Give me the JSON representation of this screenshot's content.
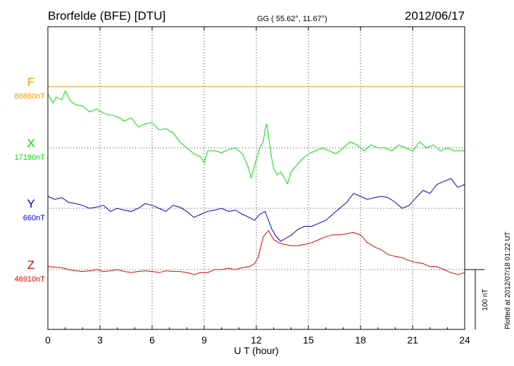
{
  "chart_data": {
    "type": "line",
    "title": "Brorfelde (BFE)  [DTU]",
    "subtitle": "GG ( 55.62°,  11.67°)",
    "date": "2012/06/17",
    "xlabel": "U T (hour)",
    "xlim": [
      0,
      24
    ],
    "xticks": [
      "0",
      "3",
      "6",
      "9",
      "12",
      "15",
      "18",
      "21",
      "24"
    ],
    "grid": true,
    "scale_bar": {
      "label": "100 nT",
      "value_nT": 100
    },
    "footer": "Plotted at 2012/07/18 01:22 UT",
    "colors": {
      "F": "#e8a000",
      "X": "#00e000",
      "Y": "#0000cc",
      "Z": "#dd0000"
    },
    "series": [
      {
        "name": "F",
        "baseline": "88880nT",
        "x": [
          0,
          24
        ],
        "y": [
          0,
          0
        ]
      },
      {
        "name": "X",
        "baseline": "17180nT",
        "x": [
          0,
          0.3,
          0.5,
          0.8,
          1.0,
          1.3,
          1.6,
          2.0,
          2.4,
          2.8,
          3.2,
          3.6,
          4.0,
          4.4,
          4.8,
          5.2,
          5.6,
          6.0,
          6.4,
          6.8,
          7.2,
          7.6,
          8.0,
          8.4,
          8.8,
          9.0,
          9.2,
          9.6,
          10.0,
          10.4,
          10.8,
          11.2,
          11.5,
          11.7,
          11.8,
          12.0,
          12.2,
          12.4,
          12.5,
          12.6,
          12.7,
          12.8,
          12.9,
          13.0,
          13.2,
          13.4,
          13.6,
          13.8,
          14.0,
          14.3,
          14.6,
          15.0,
          15.4,
          15.8,
          16.2,
          16.6,
          17.0,
          17.4,
          17.8,
          18.2,
          18.6,
          19.0,
          19.4,
          19.8,
          20.2,
          20.6,
          21.0,
          21.4,
          21.8,
          22.2,
          22.6,
          23.0,
          23.4,
          23.8,
          24.0
        ],
        "y": [
          90,
          75,
          85,
          80,
          95,
          78,
          72,
          70,
          60,
          65,
          58,
          55,
          52,
          45,
          50,
          35,
          40,
          42,
          30,
          32,
          25,
          10,
          0,
          -10,
          -15,
          -25,
          -5,
          -5,
          -8,
          -3,
          0,
          -10,
          -30,
          -50,
          -40,
          -20,
          0,
          10,
          30,
          40,
          20,
          0,
          -20,
          -35,
          -45,
          -40,
          -50,
          -60,
          -40,
          -30,
          -20,
          -10,
          -5,
          0,
          -5,
          -10,
          0,
          10,
          5,
          -5,
          5,
          0,
          0,
          -5,
          5,
          0,
          -5,
          10,
          0,
          5,
          -5,
          0,
          -5,
          -5,
          -5
        ]
      },
      {
        "name": "Y",
        "baseline": "660nT",
        "x": [
          0,
          0.4,
          0.8,
          1.2,
          1.6,
          2.0,
          2.4,
          2.8,
          3.2,
          3.6,
          4.0,
          4.4,
          4.8,
          5.2,
          5.6,
          6.0,
          6.4,
          6.8,
          7.2,
          7.6,
          8.0,
          8.4,
          8.8,
          9.2,
          9.6,
          10.0,
          10.4,
          10.8,
          11.2,
          11.6,
          11.9,
          12.2,
          12.5,
          12.7,
          12.9,
          13.1,
          13.4,
          13.7,
          14.0,
          14.4,
          14.8,
          15.2,
          15.6,
          16.0,
          16.4,
          16.8,
          17.2,
          17.6,
          18.0,
          18.4,
          18.8,
          19.2,
          19.6,
          20.0,
          20.4,
          20.8,
          21.2,
          21.6,
          22.0,
          22.4,
          22.8,
          23.2,
          23.6,
          24.0
        ],
        "y": [
          20,
          15,
          18,
          10,
          8,
          5,
          0,
          2,
          5,
          -5,
          0,
          -3,
          -5,
          0,
          8,
          5,
          0,
          -5,
          5,
          2,
          -5,
          -15,
          -10,
          -5,
          -3,
          0,
          -5,
          -3,
          -10,
          -15,
          -20,
          -10,
          -5,
          -20,
          -35,
          -45,
          -55,
          -50,
          -45,
          -35,
          -30,
          -30,
          -25,
          -20,
          -10,
          0,
          10,
          25,
          20,
          15,
          18,
          20,
          18,
          10,
          0,
          5,
          18,
          30,
          25,
          40,
          45,
          50,
          35,
          40
        ]
      },
      {
        "name": "Z",
        "baseline": "46910nT",
        "x": [
          0,
          0.4,
          0.8,
          1.2,
          1.6,
          2.0,
          2.4,
          2.8,
          3.2,
          3.6,
          4.0,
          4.4,
          4.8,
          5.2,
          5.6,
          6.0,
          6.4,
          6.8,
          7.2,
          7.6,
          8.0,
          8.4,
          8.8,
          9.2,
          9.6,
          10.0,
          10.4,
          10.8,
          11.2,
          11.6,
          11.9,
          12.1,
          12.4,
          12.7,
          13.0,
          13.3,
          13.6,
          14.0,
          14.4,
          14.8,
          15.2,
          15.6,
          16.0,
          16.4,
          16.8,
          17.2,
          17.6,
          18.0,
          18.4,
          18.8,
          19.2,
          19.6,
          20.0,
          20.4,
          20.8,
          21.2,
          21.6,
          22.0,
          22.4,
          22.8,
          23.2,
          23.6,
          24.0
        ],
        "y": [
          5,
          4,
          3,
          0,
          -2,
          -3,
          -2,
          0,
          -3,
          -2,
          0,
          -3,
          -5,
          -3,
          -2,
          -3,
          -5,
          -2,
          -3,
          -3,
          -5,
          -8,
          -5,
          -5,
          0,
          0,
          2,
          0,
          3,
          5,
          10,
          20,
          55,
          65,
          50,
          45,
          42,
          40,
          40,
          42,
          45,
          50,
          55,
          58,
          58,
          60,
          62,
          58,
          45,
          38,
          33,
          25,
          22,
          20,
          15,
          12,
          10,
          5,
          5,
          0,
          -5,
          -8,
          -5
        ]
      }
    ]
  }
}
